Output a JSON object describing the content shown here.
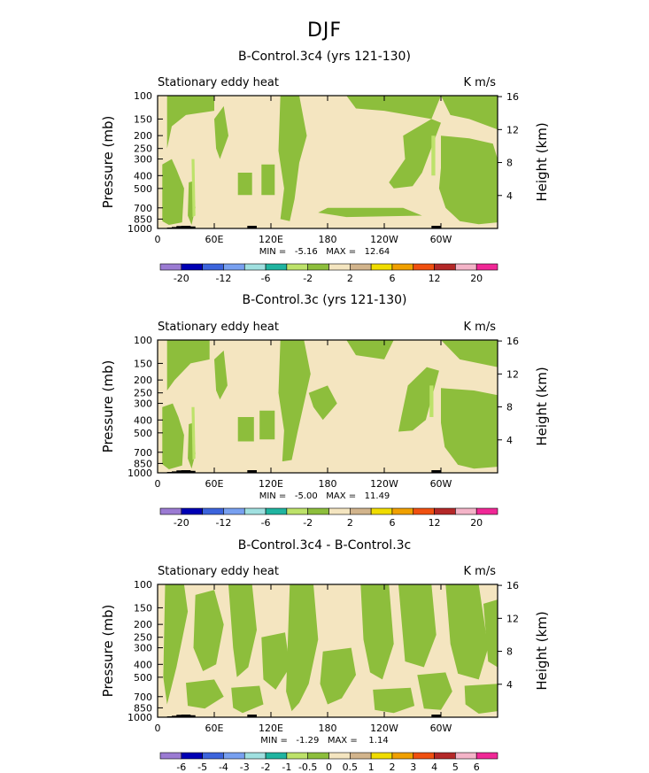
{
  "page_title": "DJF",
  "colors": {
    "ltgreen": "#bde26a",
    "green": "#8dbe3c",
    "tan": "#f4e5c0",
    "black": "#000000"
  },
  "axes": {
    "ylabel_left": "Pressure (mb)",
    "ylabel_right": "Height (km)",
    "pressure_ticks": [
      "100",
      "150",
      "200",
      "250",
      "300",
      "400",
      "500",
      "700",
      "850",
      "1000"
    ],
    "height_ticks": [
      "16",
      "12",
      "8",
      "4"
    ],
    "lon_ticks": [
      "0",
      "60E",
      "120E",
      "180",
      "120W",
      "60W"
    ]
  },
  "chart_data": [
    {
      "type": "heatmap",
      "title": "B-Control.3c4 (yrs 121-130)",
      "left_label": "Stationary eddy heat",
      "right_label": "K m/s",
      "min_max_text": "MIN =   -5.16   MAX =   12.64",
      "min": -5.16,
      "max": 12.64,
      "xlim": [
        0,
        360
      ],
      "ylim_pressure": [
        1000,
        100
      ],
      "colorbar": {
        "colors": [
          "#9b7bd3",
          "#0000b4",
          "#3c64dc",
          "#78a0f0",
          "#a0e0e0",
          "#20b4a0",
          "#bde26a",
          "#8dbe3c",
          "#f4e5c0",
          "#d2b48c",
          "#f0dc00",
          "#f0a000",
          "#f05010",
          "#b42828",
          "#f4b4c8",
          "#f02896"
        ],
        "labels": [
          "-20",
          "-12",
          "-6",
          "-2",
          "2",
          "6",
          "12",
          "20"
        ]
      }
    },
    {
      "type": "heatmap",
      "title": "B-Control.3c (yrs 121-130)",
      "left_label": "Stationary eddy heat",
      "right_label": "K m/s",
      "min_max_text": "MIN =   -5.00   MAX =   11.49",
      "min": -5.0,
      "max": 11.49,
      "xlim": [
        0,
        360
      ],
      "ylim_pressure": [
        1000,
        100
      ],
      "colorbar": {
        "colors": [
          "#9b7bd3",
          "#0000b4",
          "#3c64dc",
          "#78a0f0",
          "#a0e0e0",
          "#20b4a0",
          "#bde26a",
          "#8dbe3c",
          "#f4e5c0",
          "#d2b48c",
          "#f0dc00",
          "#f0a000",
          "#f05010",
          "#b42828",
          "#f4b4c8",
          "#f02896"
        ],
        "labels": [
          "-20",
          "-12",
          "-6",
          "-2",
          "2",
          "6",
          "12",
          "20"
        ]
      }
    },
    {
      "type": "heatmap",
      "title": "B-Control.3c4 - B-Control.3c",
      "left_label": "Stationary eddy heat",
      "right_label": "K m/s",
      "min_max_text": "MIN =   -1.29   MAX =    1.14",
      "min": -1.29,
      "max": 1.14,
      "xlim": [
        0,
        360
      ],
      "ylim_pressure": [
        1000,
        100
      ],
      "colorbar": {
        "colors": [
          "#9b7bd3",
          "#0000b4",
          "#3c64dc",
          "#78a0f0",
          "#a0e0e0",
          "#20b4a0",
          "#bde26a",
          "#8dbe3c",
          "#f4e5c0",
          "#d2b48c",
          "#f0dc00",
          "#f0a000",
          "#f05010",
          "#b42828",
          "#f4b4c8",
          "#f02896"
        ],
        "labels": [
          "-6",
          "-5",
          "-4",
          "-3",
          "-2",
          "-1",
          "-0.5",
          "0",
          "0.5",
          "1",
          "2",
          "3",
          "4",
          "5",
          "6"
        ]
      }
    }
  ]
}
